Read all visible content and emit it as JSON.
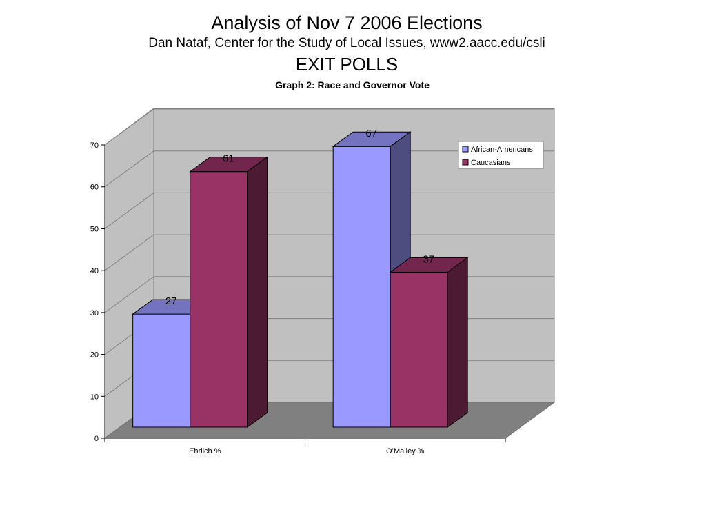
{
  "titles": {
    "main": "Analysis of Nov 7 2006 Elections",
    "sub": "Dan Nataf, Center for the Study of Local Issues,  www2.aacc.edu/csli",
    "section": "EXIT POLLS"
  },
  "chart_data": {
    "type": "bar",
    "title": "Graph 2: Race and Governor Vote",
    "categories": [
      "Ehrlich %",
      "O’Malley %"
    ],
    "series": [
      {
        "name": "African-Americans",
        "values": [
          27,
          67
        ],
        "color": "#9999ff"
      },
      {
        "name": "Caucasians",
        "values": [
          61,
          37
        ],
        "color": "#993366"
      }
    ],
    "ylim": [
      0,
      70
    ],
    "yticks": [
      0,
      10,
      20,
      30,
      40,
      50,
      60,
      70
    ],
    "grid": true,
    "legend": "top-right",
    "colors": {
      "back_wall": "#c0c0c0",
      "floor": "#808080",
      "grid_line": "#808080"
    }
  }
}
